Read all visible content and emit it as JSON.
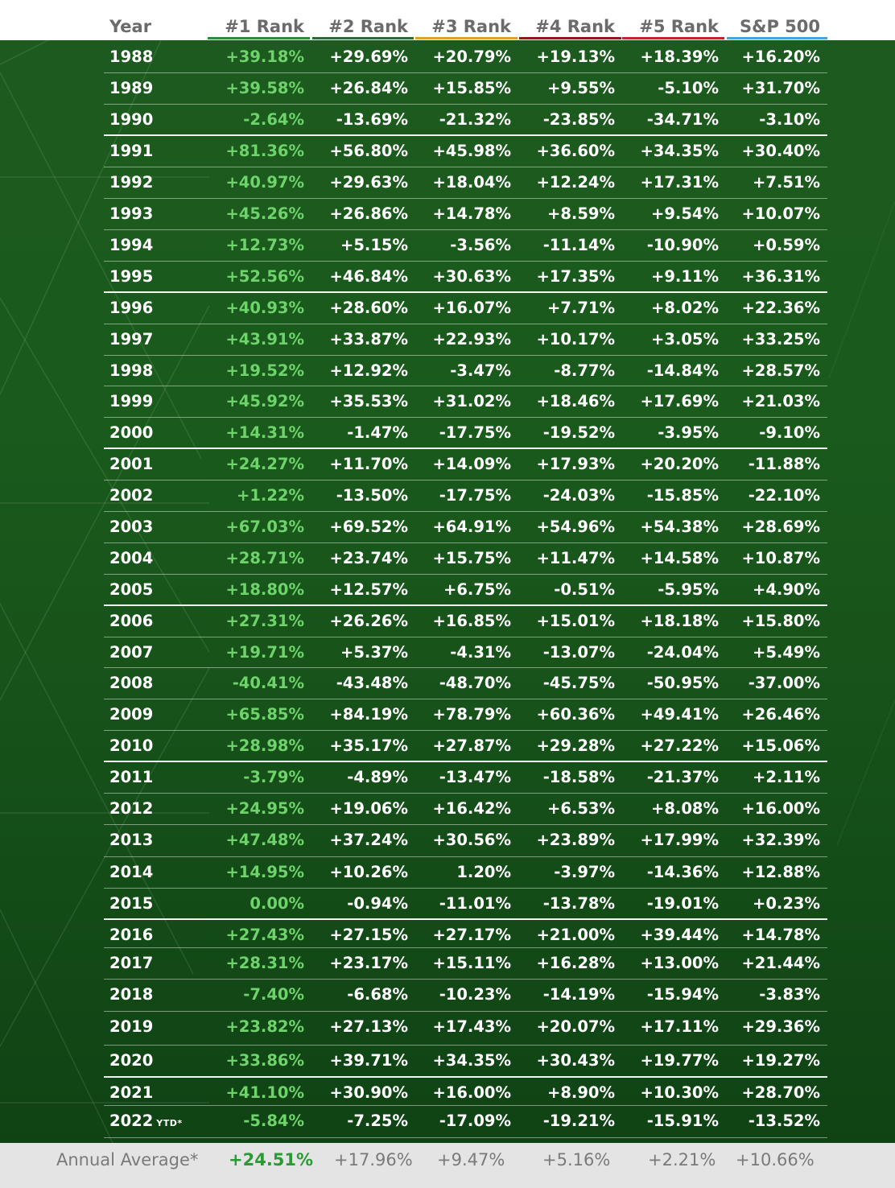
{
  "columns": [
    "Year",
    "#1 Rank",
    "#2 Rank",
    "#3 Rank",
    "#4 Rank",
    "#5 Rank",
    "S&P 500"
  ],
  "column_colors": [
    "#ffffff",
    "#2e8b3a",
    "#2d6b34",
    "#e0a030",
    "#8b1a1a",
    "#c0262c",
    "#4aa3df"
  ],
  "rows": [
    {
      "year": "1988",
      "values": [
        "+39.18%",
        "+29.69%",
        "+20.79%",
        "+19.13%",
        "+18.39%",
        "+16.20%"
      ]
    },
    {
      "year": "1989",
      "values": [
        "+39.58%",
        "+26.84%",
        "+15.85%",
        "+9.55%",
        "-5.10%",
        "+31.70%"
      ]
    },
    {
      "year": "1990",
      "values": [
        "-2.64%",
        "-13.69%",
        "-21.32%",
        "-23.85%",
        "-34.71%",
        "-3.10%"
      ]
    },
    {
      "year": "1991",
      "values": [
        "+81.36%",
        "+56.80%",
        "+45.98%",
        "+36.60%",
        "+34.35%",
        "+30.40%"
      ]
    },
    {
      "year": "1992",
      "values": [
        "+40.97%",
        "+29.63%",
        "+18.04%",
        "+12.24%",
        "+17.31%",
        "+7.51%"
      ]
    },
    {
      "year": "1993",
      "values": [
        "+45.26%",
        "+26.86%",
        "+14.78%",
        "+8.59%",
        "+9.54%",
        "+10.07%"
      ]
    },
    {
      "year": "1994",
      "values": [
        "+12.73%",
        "+5.15%",
        "-3.56%",
        "-11.14%",
        "-10.90%",
        "+0.59%"
      ]
    },
    {
      "year": "1995",
      "values": [
        "+52.56%",
        "+46.84%",
        "+30.63%",
        "+17.35%",
        "+9.11%",
        "+36.31%"
      ]
    },
    {
      "year": "1996",
      "values": [
        "+40.93%",
        "+28.60%",
        "+16.07%",
        "+7.71%",
        "+8.02%",
        "+22.36%"
      ]
    },
    {
      "year": "1997",
      "values": [
        "+43.91%",
        "+33.87%",
        "+22.93%",
        "+10.17%",
        "+3.05%",
        "+33.25%"
      ]
    },
    {
      "year": "1998",
      "values": [
        "+19.52%",
        "+12.92%",
        "-3.47%",
        "-8.77%",
        "-14.84%",
        "+28.57%"
      ]
    },
    {
      "year": "1999",
      "values": [
        "+45.92%",
        "+35.53%",
        "+31.02%",
        "+18.46%",
        "+17.69%",
        "+21.03%"
      ]
    },
    {
      "year": "2000",
      "values": [
        "+14.31%",
        "-1.47%",
        "-17.75%",
        "-19.52%",
        "-3.95%",
        "-9.10%"
      ]
    },
    {
      "year": "2001",
      "values": [
        "+24.27%",
        "+11.70%",
        "+14.09%",
        "+17.93%",
        "+20.20%",
        "-11.88%"
      ]
    },
    {
      "year": "2002",
      "values": [
        "+1.22%",
        "-13.50%",
        "-17.75%",
        "-24.03%",
        "-15.85%",
        "-22.10%"
      ]
    },
    {
      "year": "2003",
      "values": [
        "+67.03%",
        "+69.52%",
        "+64.91%",
        "+54.96%",
        "+54.38%",
        "+28.69%"
      ]
    },
    {
      "year": "2004",
      "values": [
        "+28.71%",
        "+23.74%",
        "+15.75%",
        "+11.47%",
        "+14.58%",
        "+10.87%"
      ]
    },
    {
      "year": "2005",
      "values": [
        "+18.80%",
        "+12.57%",
        "+6.75%",
        "-0.51%",
        "-5.95%",
        "+4.90%"
      ]
    },
    {
      "year": "2006",
      "values": [
        "+27.31%",
        "+26.26%",
        "+16.85%",
        "+15.01%",
        "+18.18%",
        "+15.80%"
      ]
    },
    {
      "year": "2007",
      "values": [
        "+19.71%",
        "+5.37%",
        "-4.31%",
        "-13.07%",
        "-24.04%",
        "+5.49%"
      ]
    },
    {
      "year": "2008",
      "values": [
        "-40.41%",
        "-43.48%",
        "-48.70%",
        "-45.75%",
        "-50.95%",
        "-37.00%"
      ]
    },
    {
      "year": "2009",
      "values": [
        "+65.85%",
        "+84.19%",
        "+78.79%",
        "+60.36%",
        "+49.41%",
        "+26.46%"
      ]
    },
    {
      "year": "2010",
      "values": [
        "+28.98%",
        "+35.17%",
        "+27.87%",
        "+29.28%",
        "+27.22%",
        "+15.06%"
      ]
    },
    {
      "year": "2011",
      "values": [
        "-3.79%",
        "-4.89%",
        "-13.47%",
        "-18.58%",
        "-21.37%",
        "+2.11%"
      ]
    },
    {
      "year": "2012",
      "values": [
        "+24.95%",
        "+19.06%",
        "+16.42%",
        "+6.53%",
        "+8.08%",
        "+16.00%"
      ]
    },
    {
      "year": "2013",
      "values": [
        "+47.48%",
        "+37.24%",
        "+30.56%",
        "+23.89%",
        "+17.99%",
        "+32.39%"
      ]
    },
    {
      "year": "2014",
      "values": [
        "+14.95%",
        "+10.26%",
        "1.20%",
        "-3.97%",
        "-14.36%",
        "+12.88%"
      ]
    },
    {
      "year": "2015",
      "values": [
        "0.00%",
        "-0.94%",
        "-11.01%",
        "-13.78%",
        "-19.01%",
        "+0.23%"
      ]
    },
    {
      "year": "2016",
      "values": [
        "+27.43%",
        "+27.15%",
        "+27.17%",
        "+21.00%",
        "+39.44%",
        "+14.78%"
      ]
    },
    {
      "year": "2017",
      "values": [
        "+28.31%",
        "+23.17%",
        "+15.11%",
        "+16.28%",
        "+13.00%",
        "+21.44%"
      ]
    },
    {
      "year": "2018",
      "values": [
        "-7.40%",
        "-6.68%",
        "-10.23%",
        "-14.19%",
        "-15.94%",
        "-3.83%"
      ]
    },
    {
      "year": "2019",
      "values": [
        "+23.82%",
        "+27.13%",
        "+17.43%",
        "+20.07%",
        "+17.11%",
        "+29.36%"
      ]
    },
    {
      "year": "2020",
      "values": [
        "+33.86%",
        "+39.71%",
        "+34.35%",
        "+30.43%",
        "+19.77%",
        "+19.27%"
      ]
    },
    {
      "year": "2021",
      "values": [
        "+41.10%",
        "+30.90%",
        "+16.00%",
        "+8.90%",
        "+10.30%",
        "+28.70%"
      ]
    },
    {
      "year": "2022",
      "ytd": "YTD*",
      "values": [
        "-5.84%",
        "-7.25%",
        "-17.09%",
        "-19.21%",
        "-15.91%",
        "-13.52%"
      ]
    }
  ],
  "footer": {
    "label": "Annual Average*",
    "values": [
      "+24.51%",
      "+17.96%",
      "+9.47%",
      "+5.16%",
      "+2.21%",
      "+10.66%"
    ]
  }
}
